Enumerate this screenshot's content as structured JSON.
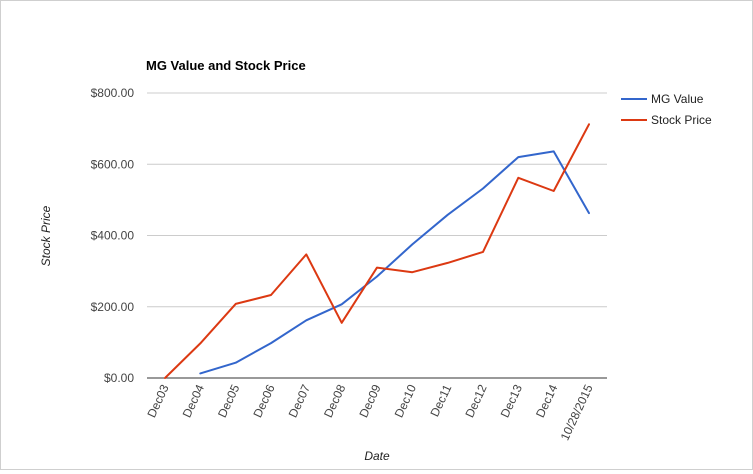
{
  "chart_data": {
    "type": "line",
    "title": "MG Value and Stock Price",
    "xlabel": "Date",
    "ylabel": "Stock Price",
    "categories": [
      "Dec03",
      "Dec04",
      "Dec05",
      "Dec06",
      "Dec07",
      "Dec08",
      "Dec09",
      "Dec10",
      "Dec11",
      "Dec12",
      "Dec13",
      "Dec14",
      "10/28/2015"
    ],
    "ylim": [
      0,
      800
    ],
    "yticks": [
      {
        "value": 0,
        "label": "$0.00"
      },
      {
        "value": 200,
        "label": "$200.00"
      },
      {
        "value": 400,
        "label": "$400.00"
      },
      {
        "value": 600,
        "label": "$600.00"
      },
      {
        "value": 800,
        "label": "$800.00"
      }
    ],
    "grid": true,
    "legend_position": "right",
    "series": [
      {
        "name": "MG Value",
        "color": "#3366cc",
        "values": [
          null,
          13,
          43,
          98,
          162,
          207,
          285,
          375,
          458,
          532,
          620,
          636,
          463
        ]
      },
      {
        "name": "Stock Price",
        "color": "#dc3912",
        "values": [
          0,
          97,
          208,
          233,
          347,
          155,
          310,
          297,
          323,
          354,
          562,
          525,
          712
        ]
      }
    ]
  }
}
